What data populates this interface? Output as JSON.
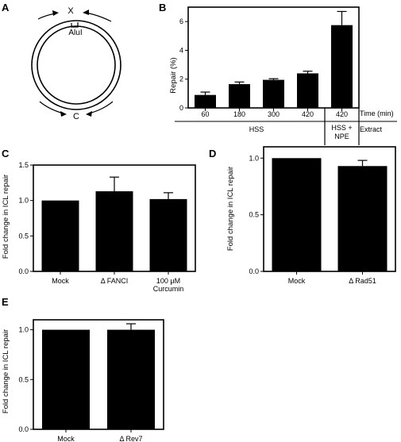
{
  "panels": {
    "A": {
      "label": "A",
      "x_label": "X",
      "alu_label": "AluI",
      "c_label": "C"
    },
    "B": {
      "label": "B"
    },
    "C": {
      "label": "C"
    },
    "D": {
      "label": "D"
    },
    "E": {
      "label": "E"
    }
  },
  "chart_data": [
    {
      "panel": "B",
      "type": "bar",
      "ylabel": "Repair (%)",
      "ylim": [
        0,
        7
      ],
      "yticks": [
        0,
        2,
        4,
        6
      ],
      "categories": [
        "60",
        "180",
        "300",
        "420",
        "420"
      ],
      "values": [
        0.9,
        1.65,
        1.95,
        2.4,
        5.75
      ],
      "errors": [
        0.2,
        0.15,
        0.08,
        0.15,
        0.95
      ],
      "x_row_label": "Time (min)",
      "groups": [
        {
          "name": "HSS",
          "span": [
            0,
            3
          ]
        },
        {
          "name_lines": [
            "HSS +",
            "NPE"
          ],
          "span": [
            4,
            4
          ]
        }
      ],
      "group_row_label": "Extract"
    },
    {
      "panel": "C",
      "type": "bar",
      "ylabel": "Fold change in ICL repair",
      "ylim": [
        0,
        1.5
      ],
      "yticks": [
        "0.0",
        "0.5",
        "1.0",
        "1.5"
      ],
      "categories": [
        [
          "Mock"
        ],
        [
          "Δ FANCI"
        ],
        [
          "100 μM",
          "Curcumin"
        ]
      ],
      "values": [
        1.0,
        1.13,
        1.02
      ],
      "errors": [
        0,
        0.2,
        0.09
      ]
    },
    {
      "panel": "D",
      "type": "bar",
      "ylabel": "Fold change in ICL repair",
      "ylim": [
        0,
        1.1
      ],
      "yticks": [
        "0.0",
        "0.5",
        "1.0"
      ],
      "categories": [
        [
          "Mock"
        ],
        [
          "Δ Rad51"
        ]
      ],
      "values": [
        1.0,
        0.93
      ],
      "errors": [
        0,
        0.05
      ]
    },
    {
      "panel": "E",
      "type": "bar",
      "ylabel": "Fold change in ICL repair",
      "ylim": [
        0,
        1.1
      ],
      "yticks": [
        "0.0",
        "0.5",
        "1.0"
      ],
      "categories": [
        [
          "Mock"
        ],
        [
          "Δ Rev7"
        ]
      ],
      "values": [
        1.0,
        1.0
      ],
      "errors": [
        0,
        0.06
      ]
    }
  ]
}
